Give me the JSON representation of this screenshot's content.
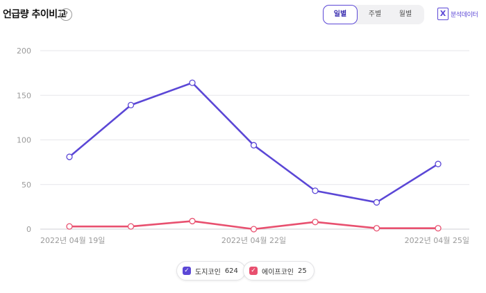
{
  "header": {
    "title": "언급량 추이비교",
    "help_icon": "?",
    "period_buttons": [
      "일별",
      "주별",
      "월별"
    ],
    "active_period": "일별",
    "analysis_label": "분석데이터",
    "analysis_icon_text": "X"
  },
  "chart_data": {
    "type": "line",
    "x": [
      "2022년 04월 19일",
      "2022년 04월 20일",
      "2022년 04월 21일",
      "2022년 04월 22일",
      "2022년 04월 23일",
      "2022년 04월 24일",
      "2022년 04월 25일"
    ],
    "x_tick_labels": [
      "2022년 04월 19일",
      "2022년 04월 22일",
      "2022년 04월 25일"
    ],
    "x_tick_indices": [
      0,
      3,
      6
    ],
    "y_ticks": [
      "0",
      "50",
      "100",
      "150",
      "200"
    ],
    "ylim": [
      0,
      200
    ],
    "grid": true,
    "series": [
      {
        "name": "도지코인",
        "color": "#5b47d6",
        "values": [
          81,
          139,
          164,
          94,
          43,
          30,
          73
        ]
      },
      {
        "name": "에이프코인",
        "color": "#e8506f",
        "values": [
          3,
          3,
          9,
          0,
          8,
          1,
          1
        ]
      }
    ]
  },
  "legend": [
    {
      "name": "도지코인",
      "count": "624",
      "color": "#5b47d6",
      "checked": true
    },
    {
      "name": "에이프코인",
      "count": "25",
      "color": "#e8506f",
      "checked": true
    }
  ]
}
